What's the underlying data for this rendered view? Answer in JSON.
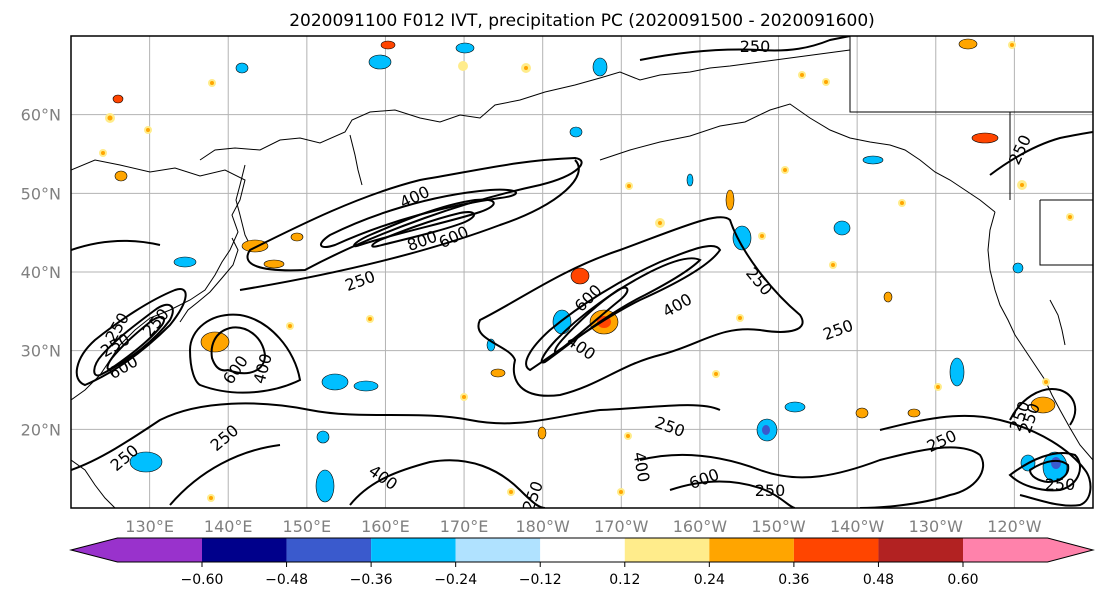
{
  "title": "2020091100 F012 IVT, precipitation PC (2020091500 - 2020091600)",
  "map": {
    "lat_labels": [
      "60°N",
      "50°N",
      "40°N",
      "30°N",
      "20°N"
    ],
    "lon_labels": [
      "130°E",
      "140°E",
      "150°E",
      "160°E",
      "170°E",
      "180°W",
      "170°W",
      "160°W",
      "150°W",
      "140°W",
      "130°W",
      "120°W"
    ],
    "lat_range": [
      10,
      70
    ],
    "lon_range": [
      120,
      250
    ],
    "grid": true,
    "ivt_contour_levels": [
      "250",
      "400",
      "600",
      "800"
    ],
    "ivt_contour_labels": [
      "250",
      "250",
      "400",
      "800",
      "600",
      "250",
      "250",
      "600",
      "400",
      "250",
      "400",
      "250",
      "250",
      "600",
      "400",
      "250",
      "250",
      "400",
      "600",
      "250",
      "250",
      "250",
      "250",
      "250",
      "250",
      "250",
      "400",
      "600",
      "250"
    ]
  },
  "colorbar": {
    "ticks": [
      "−0.60",
      "−0.48",
      "−0.36",
      "−0.24",
      "−0.12",
      "0.12",
      "0.24",
      "0.36",
      "0.48",
      "0.60"
    ],
    "colors": [
      "#9932cc",
      "#00008b",
      "#3a5acd",
      "#00bfff",
      "#b0e2ff",
      "#ffffff",
      "#ffec8b",
      "#ffa500",
      "#ff4500",
      "#b22222",
      "#ff82ab"
    ],
    "extend": "both"
  },
  "chart_data": {
    "type": "heatmap",
    "title": "2020091100 F012 IVT, precipitation PC (2020091500 - 2020091600)",
    "xlabel": "",
    "ylabel": "",
    "x_ticks": [
      "130°E",
      "140°E",
      "150°E",
      "160°E",
      "170°E",
      "180°W",
      "170°W",
      "160°W",
      "150°W",
      "140°W",
      "130°W",
      "120°W"
    ],
    "y_ticks": [
      "60°N",
      "50°N",
      "40°N",
      "30°N",
      "20°N"
    ],
    "xlim": [
      120,
      250
    ],
    "ylim": [
      10,
      70
    ],
    "colorbar_levels": [
      -0.72,
      -0.6,
      -0.48,
      -0.36,
      -0.24,
      -0.12,
      0.12,
      0.24,
      0.36,
      0.48,
      0.6,
      0.72
    ],
    "contour_levels": [
      250,
      400,
      600,
      800
    ]
  }
}
